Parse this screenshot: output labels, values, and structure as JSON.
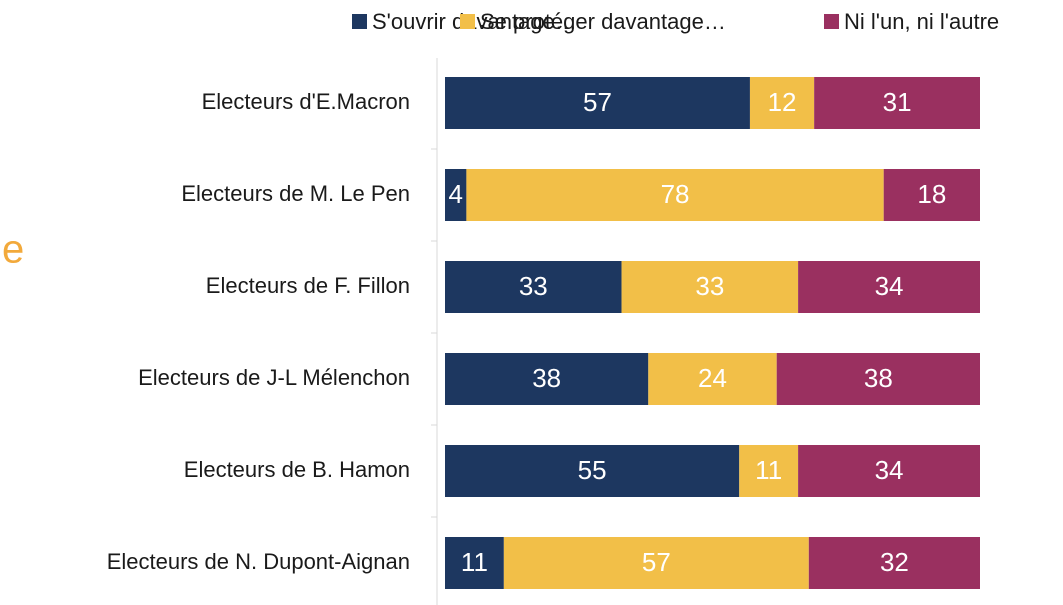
{
  "chart_data": {
    "type": "bar",
    "orientation": "horizontal",
    "stacked": true,
    "annotation": "e",
    "categories": [
      "Electeurs d'E.Macron",
      "Electeurs de M. Le Pen",
      "Electeurs de F. Fillon",
      "Electeurs de J-L Mélenchon",
      "Electeurs de B. Hamon",
      "Electeurs de N. Dupont-Aignan"
    ],
    "series": [
      {
        "name": "S'ouvrir davantage…",
        "color": "#1d3760",
        "values": [
          57,
          4,
          33,
          38,
          55,
          11
        ]
      },
      {
        "name": "Se protéger davantage…",
        "color": "#f2bf48",
        "values": [
          12,
          78,
          33,
          24,
          11,
          57
        ]
      },
      {
        "name": "Ni l'un, ni l'autre",
        "color": "#9a3060",
        "values": [
          31,
          18,
          34,
          38,
          34,
          32
        ]
      }
    ],
    "xlim": [
      0,
      100
    ],
    "legend": "top"
  }
}
